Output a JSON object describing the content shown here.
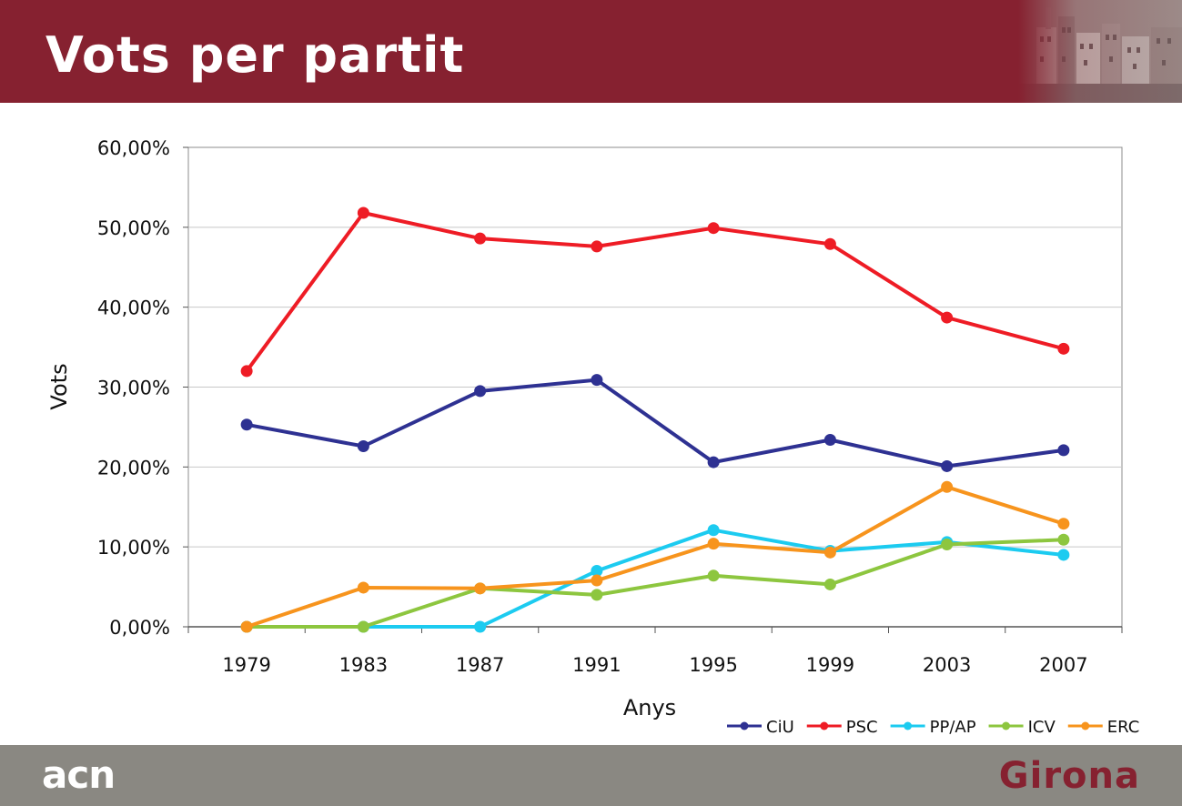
{
  "header": {
    "title": "Vots per partit"
  },
  "footer": {
    "brand": "acn",
    "city": "Girona"
  },
  "chart_data": {
    "type": "line",
    "title": "",
    "xlabel": "Anys",
    "ylabel": "Vots",
    "x": [
      "1979",
      "1983",
      "1987",
      "1991",
      "1995",
      "1999",
      "2003",
      "2007"
    ],
    "ylim": [
      0,
      60
    ],
    "y_ticks": [
      "0,00%",
      "10,00%",
      "20,00%",
      "30,00%",
      "40,00%",
      "50,00%",
      "60,00%"
    ],
    "y_tick_values": [
      0,
      10,
      20,
      30,
      40,
      50,
      60
    ],
    "grid": "horizontal",
    "legend_position": "bottom-right",
    "series": [
      {
        "name": "CiU",
        "color": "#2e3192",
        "values": [
          25.3,
          22.6,
          29.5,
          30.9,
          20.6,
          23.4,
          20.1,
          22.1
        ]
      },
      {
        "name": "PSC",
        "color": "#ee1c25",
        "values": [
          32.0,
          51.8,
          48.6,
          47.6,
          49.9,
          47.9,
          38.7,
          34.8
        ]
      },
      {
        "name": "PP/AP",
        "color": "#1ccbf0",
        "values": [
          0.0,
          0.0,
          0.0,
          7.0,
          12.1,
          9.5,
          10.6,
          9.0
        ]
      },
      {
        "name": "ICV",
        "color": "#8dc63f",
        "values": [
          0.0,
          0.0,
          4.8,
          4.0,
          6.4,
          5.3,
          10.3,
          10.9
        ]
      },
      {
        "name": "ERC",
        "color": "#f7941d",
        "values": [
          0.0,
          4.9,
          4.8,
          5.8,
          10.4,
          9.3,
          17.5,
          12.9
        ]
      }
    ]
  }
}
